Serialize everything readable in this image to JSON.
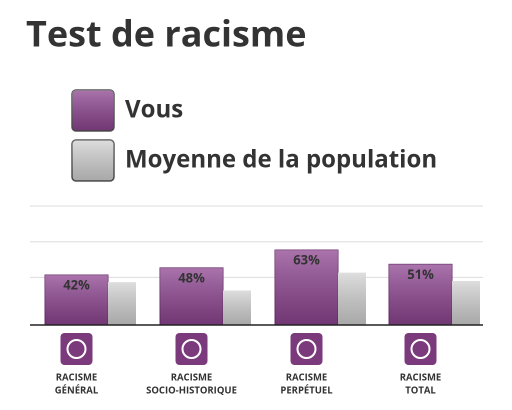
{
  "chart_data": {
    "type": "bar",
    "title": "Test de racisme",
    "categories": [
      [
        "RACISME",
        "GÉNÉRAL"
      ],
      [
        "RACISME",
        "SOCIO-HISTORIQUE"
      ],
      [
        "RACISME",
        "PERPÉTUEL"
      ],
      [
        "RACISME",
        "TOTAL"
      ]
    ],
    "series": [
      {
        "name": "Vous",
        "color": "#8e4591",
        "values": [
          42,
          48,
          63,
          51
        ],
        "value_labels": [
          "42%",
          "48%",
          "63%",
          "51%"
        ]
      },
      {
        "name": "Moyenne de la population",
        "color": "#d3d3d3",
        "values": [
          36,
          29,
          44,
          37
        ]
      }
    ],
    "ylim": [
      0,
      100
    ],
    "gridlines": [
      40,
      70,
      100
    ],
    "grid": true
  }
}
